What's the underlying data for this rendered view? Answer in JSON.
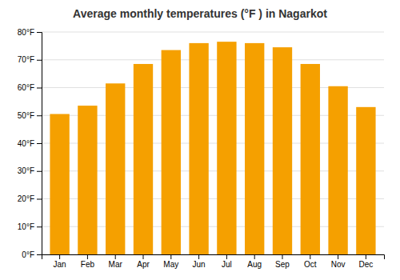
{
  "chart_data": {
    "type": "bar",
    "title": "Average monthly temperatures (°F ) in Nagarkot",
    "categories": [
      "Jan",
      "Feb",
      "Mar",
      "Apr",
      "May",
      "Jun",
      "Jul",
      "Aug",
      "Sep",
      "Oct",
      "Nov",
      "Dec"
    ],
    "values": [
      50.5,
      53.5,
      61.5,
      68.5,
      73.5,
      76.0,
      76.5,
      76.0,
      74.5,
      68.5,
      60.5,
      53.0
    ],
    "color": "#F5A000",
    "ylim": [
      0,
      80
    ],
    "yticks": [
      {
        "value": 0,
        "label": "0°F"
      },
      {
        "value": 10,
        "label": "10°F"
      },
      {
        "value": 20,
        "label": "20°F"
      },
      {
        "value": 30,
        "label": "30°F"
      },
      {
        "value": 40,
        "label": "40°F"
      },
      {
        "value": 50,
        "label": "50°F"
      },
      {
        "value": 60,
        "label": "60°F"
      },
      {
        "value": 70,
        "label": "70°F"
      },
      {
        "value": 80,
        "label": "80°F"
      }
    ],
    "grid": true
  }
}
